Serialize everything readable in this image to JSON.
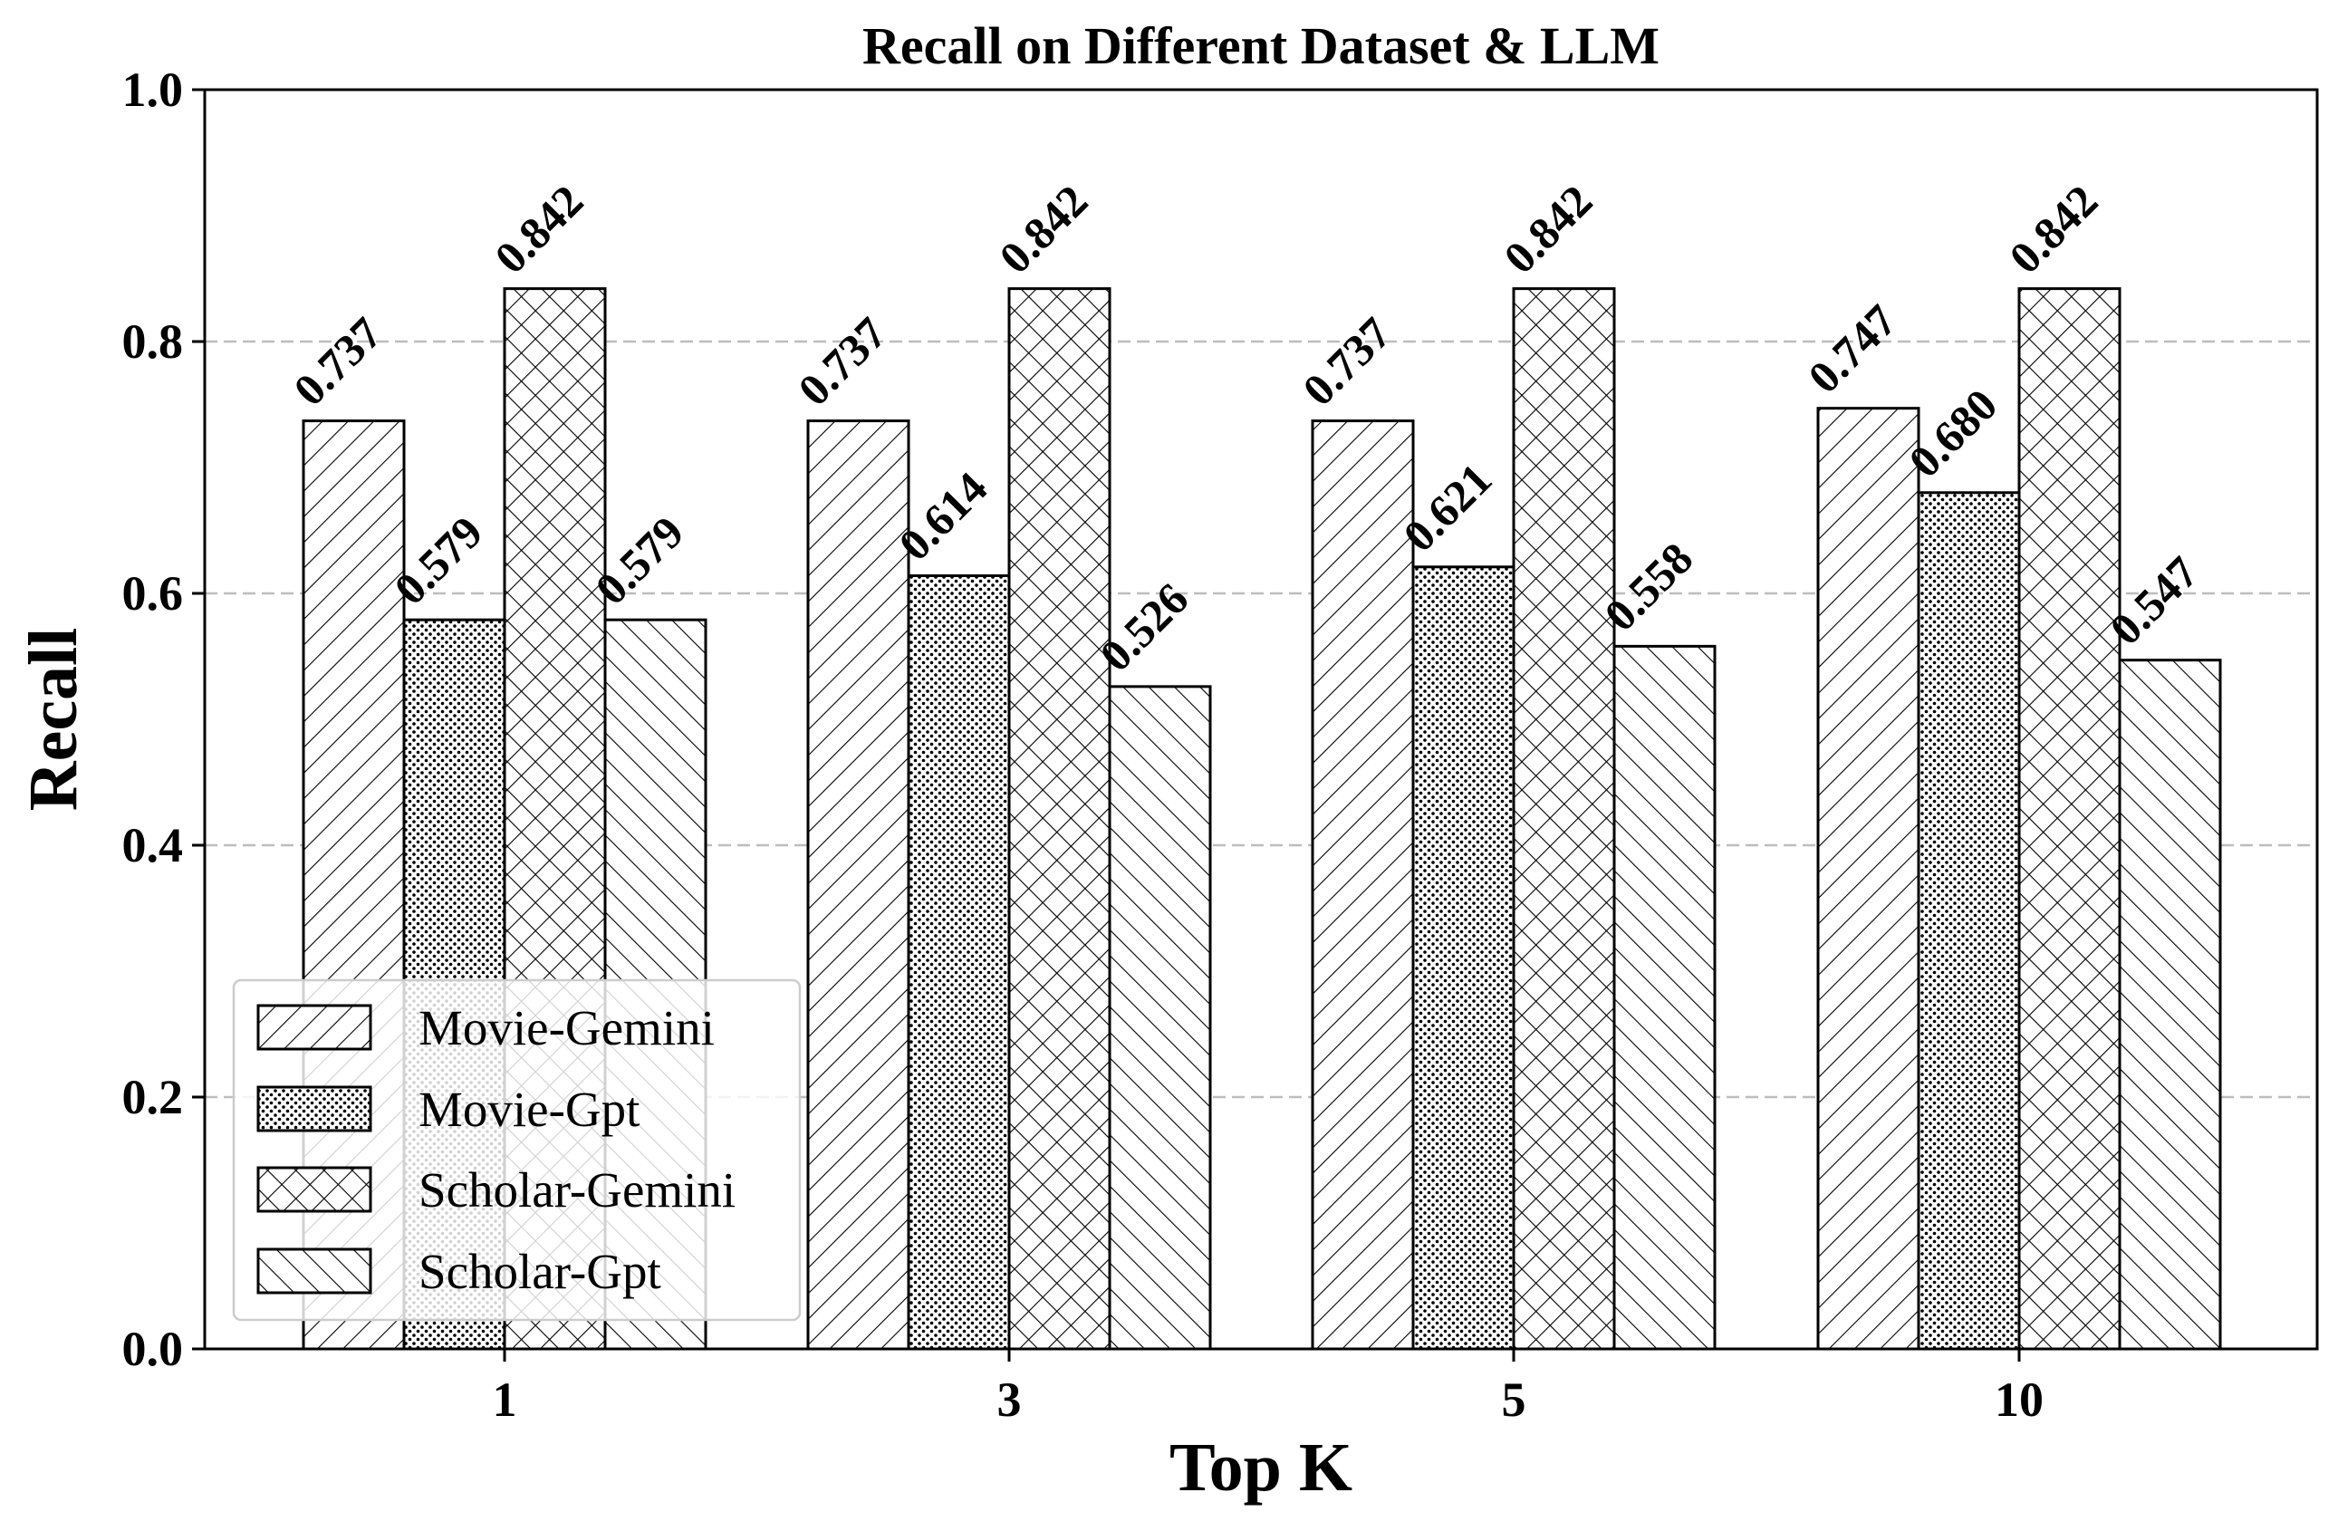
{
  "chart_data": {
    "type": "bar",
    "title": "Recall on Different Dataset & LLM",
    "xlabel": "Top K",
    "ylabel": "Recall",
    "categories": [
      "1",
      "3",
      "5",
      "10"
    ],
    "ylim": [
      0,
      1.0
    ],
    "yticks": [
      "0.0",
      "0.2",
      "0.4",
      "0.6",
      "0.8",
      "1.0"
    ],
    "grid": "horizontal dashed",
    "legend_position": "lower-left",
    "series": [
      {
        "name": "Movie-Gemini",
        "pattern": "diagonal-up",
        "values": [
          0.737,
          0.737,
          0.737,
          0.747
        ],
        "labels": [
          "0.737",
          "0.737",
          "0.737",
          "0.747"
        ]
      },
      {
        "name": "Movie-Gpt",
        "pattern": "dots",
        "values": [
          0.579,
          0.614,
          0.621,
          0.68
        ],
        "labels": [
          "0.579",
          "0.614",
          "0.621",
          "0.680"
        ]
      },
      {
        "name": "Scholar-Gemini",
        "pattern": "crosshatch",
        "values": [
          0.842,
          0.842,
          0.842,
          0.842
        ],
        "labels": [
          "0.842",
          "0.842",
          "0.842",
          "0.842"
        ]
      },
      {
        "name": "Scholar-Gpt",
        "pattern": "diagonal-down",
        "values": [
          0.579,
          0.526,
          0.558,
          0.547
        ],
        "labels": [
          "0.579",
          "0.526",
          "0.558",
          "0.547"
        ]
      }
    ],
    "colors": {
      "bar_fill": "#ffffff",
      "bar_edge": "#000000",
      "grid": "#bdbdbd"
    }
  }
}
